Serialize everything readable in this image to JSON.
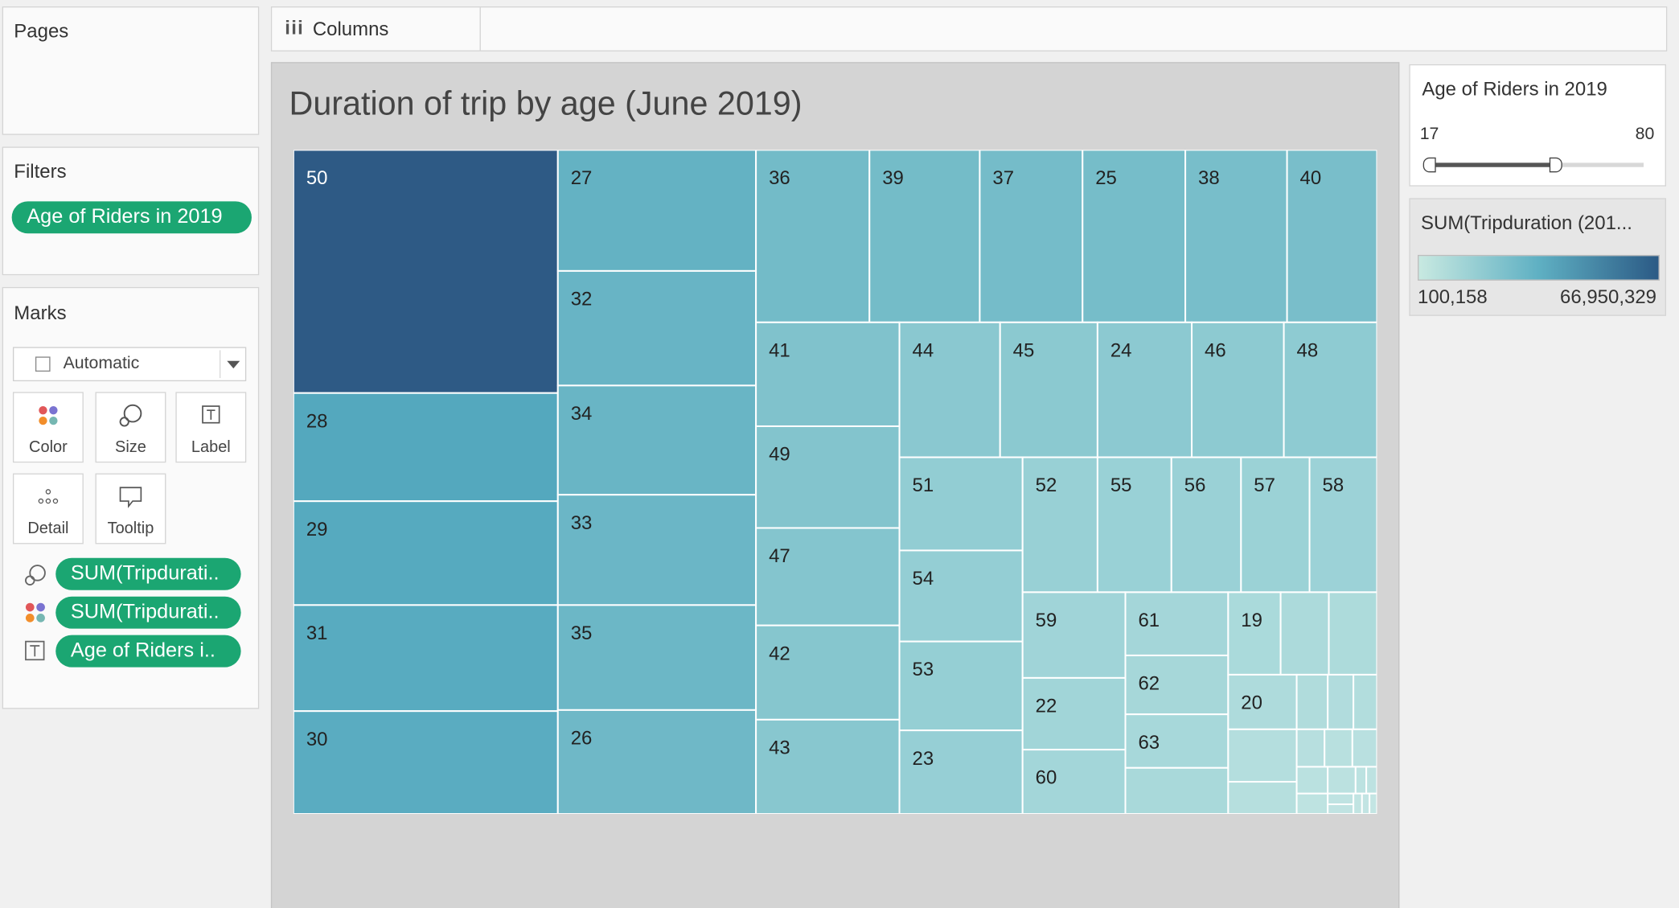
{
  "pages_card": {
    "title": "Pages"
  },
  "filters_card": {
    "title": "Filters",
    "filter_pill": "Age of Riders in 2019"
  },
  "marks_card": {
    "title": "Marks",
    "mark_type": "Automatic",
    "buttons": [
      {
        "label": "Color",
        "icon": "color-dots-icon"
      },
      {
        "label": "Size",
        "icon": "size-lasso-icon"
      },
      {
        "label": "Label",
        "icon": "text-box-icon"
      },
      {
        "label": "Detail",
        "icon": "detail-dots-icon"
      },
      {
        "label": "Tooltip",
        "icon": "speech-bubble-icon"
      }
    ],
    "pills": [
      {
        "label": "SUM(Tripdurati..",
        "icon": "size-lasso-icon"
      },
      {
        "label": "SUM(Tripdurati..",
        "icon": "color-dots-icon"
      },
      {
        "label": "Age of Riders i..",
        "icon": "text-box-icon"
      }
    ]
  },
  "columns_shelf": {
    "label": "Columns",
    "icon": "columns-icon"
  },
  "viz": {
    "title": "Duration of trip by age (June 2019)"
  },
  "age_filter_legend": {
    "title": "Age of Riders in 2019",
    "min_label": "17",
    "max_label": "80",
    "range_min": 17,
    "range_max": 80
  },
  "color_legend": {
    "title": "SUM(Tripduration (201...",
    "min_label": "100,158",
    "max_label": "66,950,329",
    "color_low": "#c8e9e1",
    "color_high": "#2b5a85"
  },
  "colors": {
    "pill_green": "#1ba672",
    "viz_bg": "#d4d4d4",
    "cell_border": "#ffffff"
  },
  "treemap": {
    "labeled_cells": [
      "50",
      "28",
      "29",
      "31",
      "30",
      "27",
      "32",
      "34",
      "33",
      "35",
      "26",
      "36",
      "39",
      "37",
      "25",
      "38",
      "40",
      "41",
      "49",
      "47",
      "42",
      "43",
      "44",
      "45",
      "24",
      "46",
      "48",
      "51",
      "54",
      "53",
      "23",
      "52",
      "59",
      "22",
      "60",
      "55",
      "56",
      "57",
      "58",
      "61",
      "62",
      "63",
      "19",
      "20"
    ]
  }
}
